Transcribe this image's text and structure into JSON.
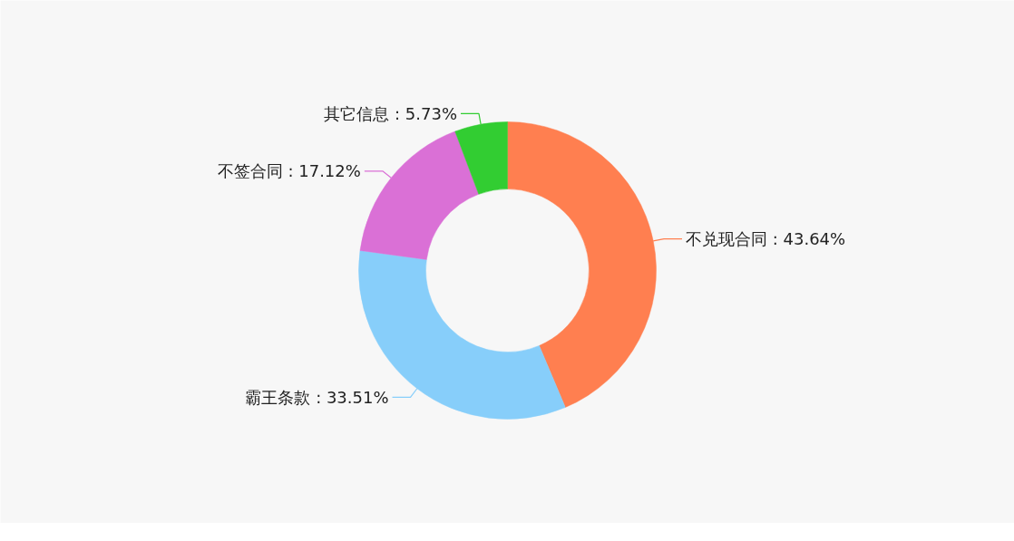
{
  "chart_data": {
    "type": "donut",
    "categories": [
      "不兑现合同",
      "霸王条款",
      "不签合同",
      "其它信息"
    ],
    "values": [
      43.64,
      33.51,
      17.12,
      5.73
    ],
    "colors": [
      "#ff7f50",
      "#87cefa",
      "#da70d6",
      "#32cd32"
    ],
    "value_labels": [
      "43.64%",
      "33.51%",
      "17.12%",
      "5.73%"
    ],
    "legend": false
  }
}
